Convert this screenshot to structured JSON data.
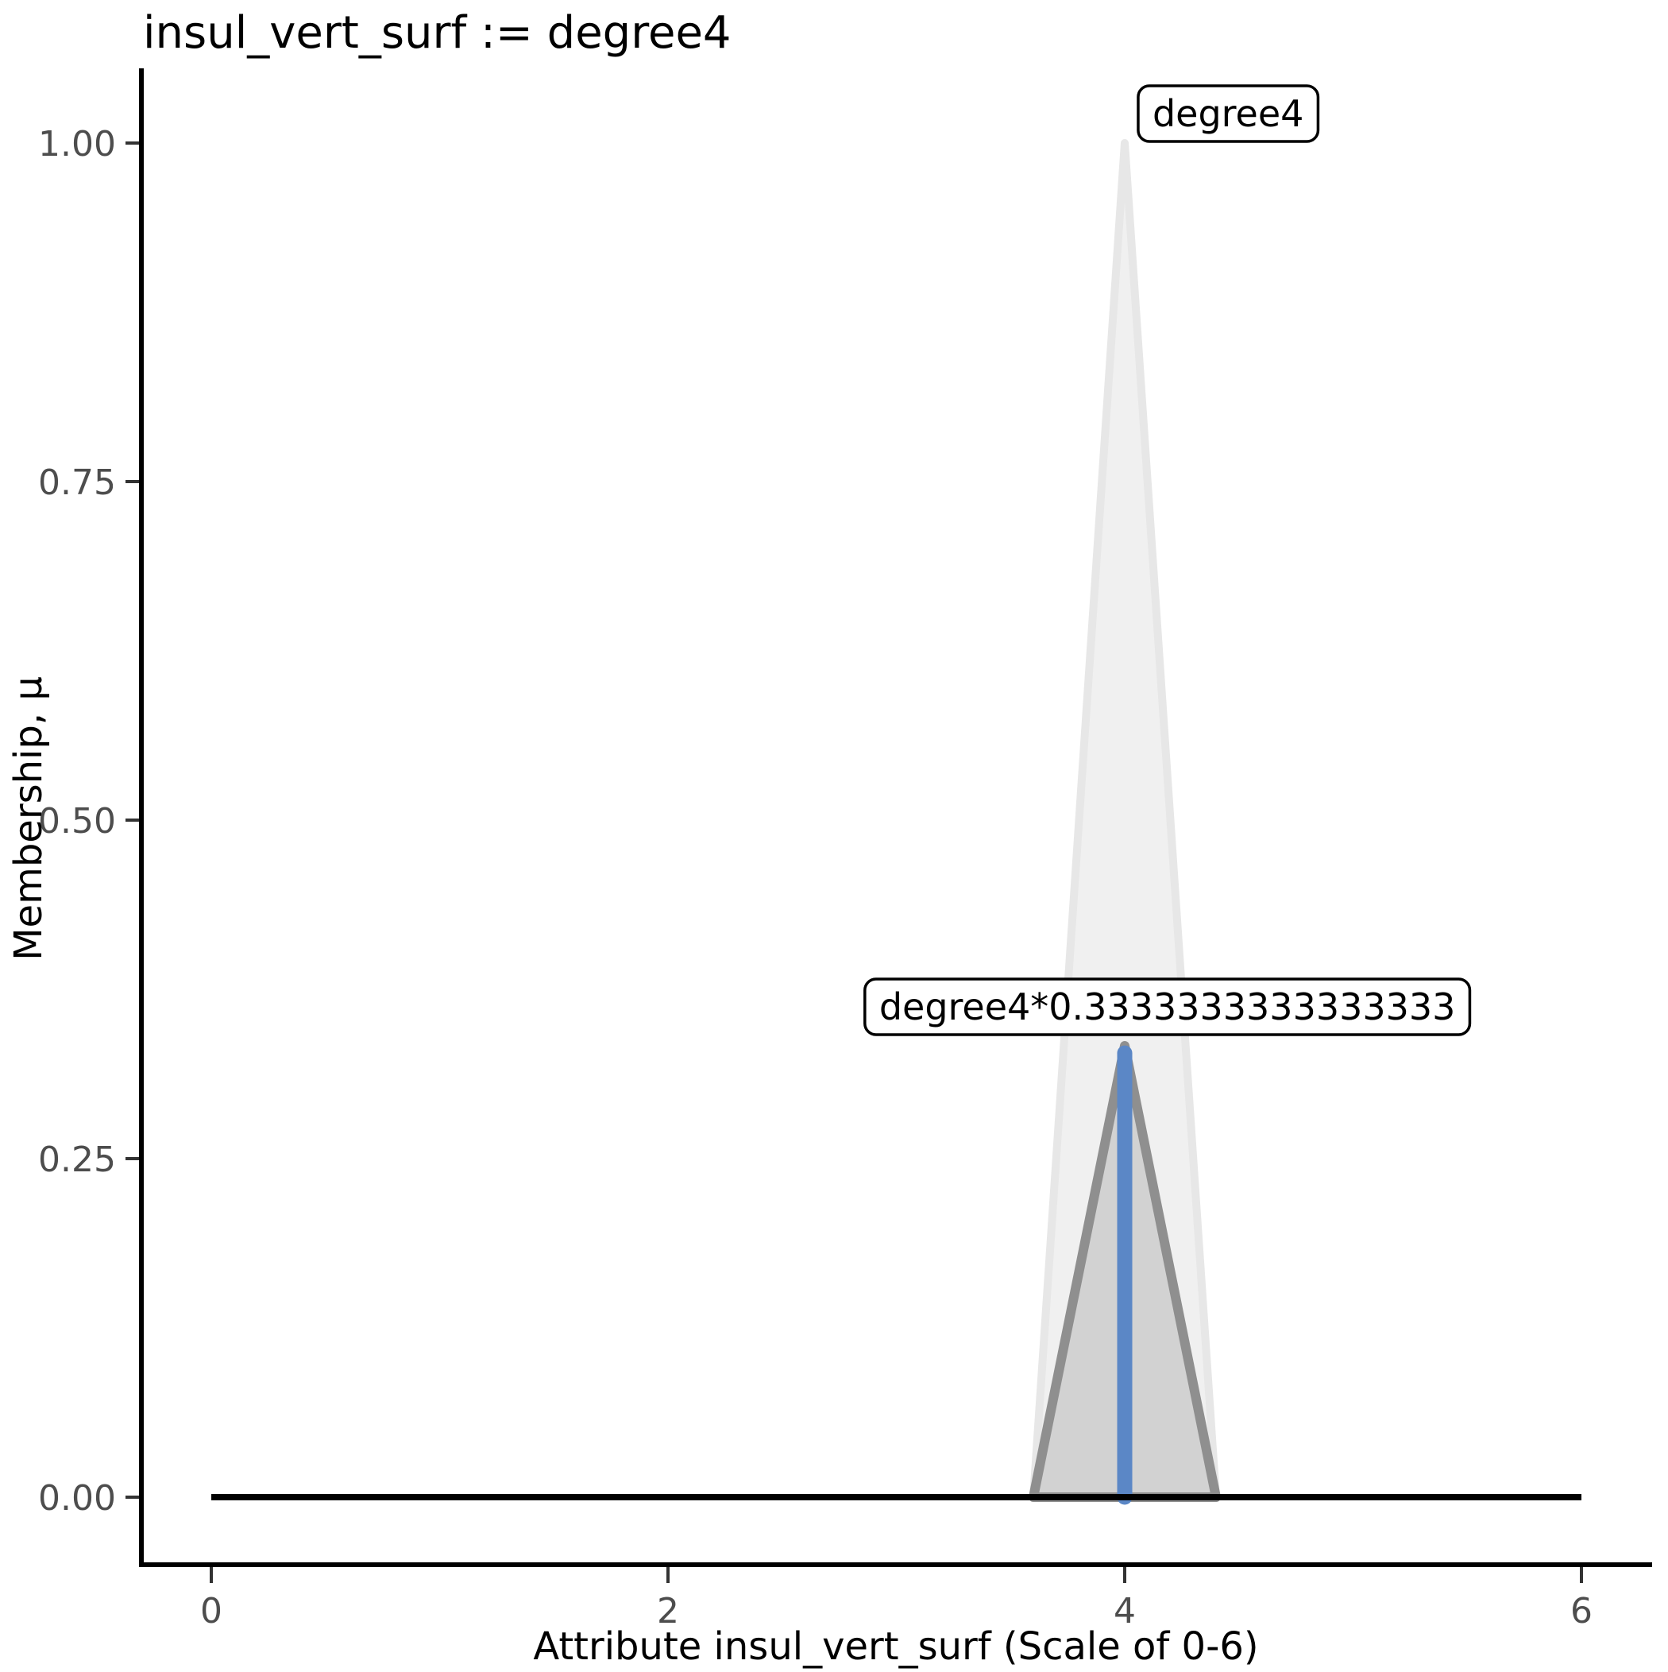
{
  "page": {
    "background": "#ffffff"
  },
  "chart_data": {
    "type": "area",
    "title": "insul_vert_surf := degree4",
    "xlabel": "Attribute insul_vert_surf (Scale of 0-6)",
    "ylabel": "Membership, μ",
    "xlim": [
      0,
      6
    ],
    "ylim": [
      0,
      1
    ],
    "grid": false,
    "legend": "none",
    "x_ticks": [
      {
        "value": 0,
        "label": "0"
      },
      {
        "value": 2,
        "label": "2"
      },
      {
        "value": 4,
        "label": "4"
      },
      {
        "value": 6,
        "label": "6"
      }
    ],
    "y_ticks": [
      {
        "value": 0.0,
        "label": "0.00"
      },
      {
        "value": 0.25,
        "label": "0.25"
      },
      {
        "value": 0.5,
        "label": "0.50"
      },
      {
        "value": 0.75,
        "label": "0.75"
      },
      {
        "value": 1.0,
        "label": "1.00"
      }
    ],
    "series": [
      {
        "name": "degree4",
        "shape": "filled-triangle",
        "points": [
          [
            3.6,
            0
          ],
          [
            4,
            1
          ],
          [
            4.4,
            0
          ]
        ],
        "fill": "#f0f0f0",
        "stroke": "#e7e7e7",
        "stroke_width": 10
      },
      {
        "name": "degree4*0.3333333333333333",
        "shape": "filled-triangle",
        "points": [
          [
            3.6,
            0
          ],
          [
            4,
            0.3333333333333333
          ],
          [
            4.4,
            0
          ]
        ],
        "fill": "#d2d2d2",
        "stroke": "#8f8f8f",
        "stroke_width": 12
      },
      {
        "name": "output-value-line",
        "shape": "vline",
        "x": 4,
        "y0": 0,
        "y1": 0.328,
        "stroke": "#5b87c6",
        "stroke_width": 19
      },
      {
        "name": "zero-membership-line",
        "shape": "hline",
        "y": 0,
        "x0": 0,
        "x1": 6,
        "stroke": "#000000",
        "stroke_width": 8
      }
    ],
    "annotations": [
      {
        "text": "degree4",
        "x": 4.059,
        "y": 1.0223
      },
      {
        "text": "degree4*0.3333333333333333",
        "x": 2.862,
        "y": 0.3627
      }
    ],
    "colors": {
      "spine": "#000000",
      "tick_mark": "#333333",
      "tick_label": "#4d4d4d",
      "annotation_bg": "#ffffff",
      "annotation_border": "#000000"
    }
  }
}
